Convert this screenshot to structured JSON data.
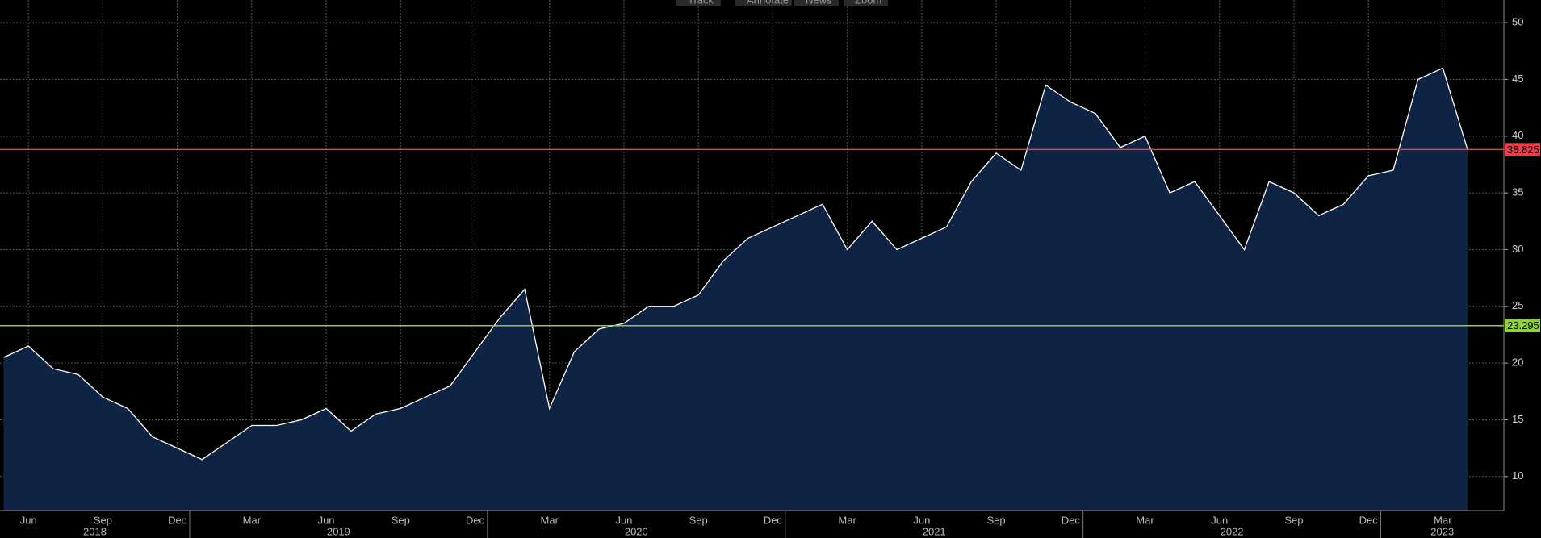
{
  "toolbar": [
    "Track",
    "Annotate",
    "News",
    "Zoom"
  ],
  "chart_data": {
    "type": "area",
    "color": "#ffffff",
    "fill": "#0f2444",
    "x": [
      "2018-05",
      "2018-06",
      "2018-07",
      "2018-08",
      "2018-09",
      "2018-10",
      "2018-11",
      "2018-12",
      "2019-01",
      "2019-02",
      "2019-03",
      "2019-04",
      "2019-05",
      "2019-06",
      "2019-07",
      "2019-08",
      "2019-09",
      "2019-10",
      "2019-11",
      "2019-12",
      "2020-01",
      "2020-02",
      "2020-03",
      "2020-04",
      "2020-05",
      "2020-06",
      "2020-07",
      "2020-08",
      "2020-09",
      "2020-10",
      "2020-11",
      "2020-12",
      "2021-01",
      "2021-02",
      "2021-03",
      "2021-04",
      "2021-05",
      "2021-06",
      "2021-07",
      "2021-08",
      "2021-09",
      "2021-10",
      "2021-11",
      "2021-12",
      "2022-01",
      "2022-02",
      "2022-03",
      "2022-04",
      "2022-05",
      "2022-06",
      "2022-07",
      "2022-08",
      "2022-09",
      "2022-10",
      "2022-11",
      "2022-12",
      "2023-01",
      "2023-02",
      "2023-03",
      "2023-04"
    ],
    "values": [
      20.5,
      21.5,
      19.5,
      19,
      17,
      16,
      13.5,
      12.5,
      11.5,
      13,
      14.5,
      14.5,
      15,
      16,
      14,
      15.5,
      16,
      17,
      18,
      21,
      24,
      26.5,
      16,
      21,
      23,
      23.5,
      25,
      25,
      26,
      29,
      31,
      32,
      33,
      34,
      30,
      32.5,
      30,
      31,
      32,
      36,
      38.5,
      37,
      44.5,
      43,
      42,
      39,
      40,
      35,
      36,
      33,
      30,
      36,
      35,
      33,
      34,
      36.5,
      37,
      45,
      46,
      38.8
    ],
    "ylim": [
      7,
      52
    ],
    "yticks": [
      10,
      15,
      20,
      25,
      30,
      35,
      40,
      45,
      50
    ],
    "xticks": [
      {
        "value": "2018-06",
        "label": "Jun"
      },
      {
        "value": "2018-09",
        "label": "Sep"
      },
      {
        "value": "2018-12",
        "label": "Dec"
      },
      {
        "value": "2019-03",
        "label": "Mar"
      },
      {
        "value": "2019-06",
        "label": "Jun"
      },
      {
        "value": "2019-09",
        "label": "Sep"
      },
      {
        "value": "2019-12",
        "label": "Dec"
      },
      {
        "value": "2020-03",
        "label": "Mar"
      },
      {
        "value": "2020-06",
        "label": "Jun"
      },
      {
        "value": "2020-09",
        "label": "Sep"
      },
      {
        "value": "2020-12",
        "label": "Dec"
      },
      {
        "value": "2021-03",
        "label": "Mar"
      },
      {
        "value": "2021-06",
        "label": "Jun"
      },
      {
        "value": "2021-09",
        "label": "Sep"
      },
      {
        "value": "2021-12",
        "label": "Dec"
      },
      {
        "value": "2022-03",
        "label": "Mar"
      },
      {
        "value": "2022-06",
        "label": "Jun"
      },
      {
        "value": "2022-09",
        "label": "Sep"
      },
      {
        "value": "2022-12",
        "label": "Dec"
      },
      {
        "value": "2023-03",
        "label": "Mar"
      }
    ],
    "years": [
      2018,
      2019,
      2020,
      2021,
      2022,
      2023
    ],
    "hlines": [
      {
        "value": 38.825,
        "color": "#e8404a"
      },
      {
        "value": 23.295,
        "color": "#8fd13a"
      }
    ],
    "grid": true
  }
}
